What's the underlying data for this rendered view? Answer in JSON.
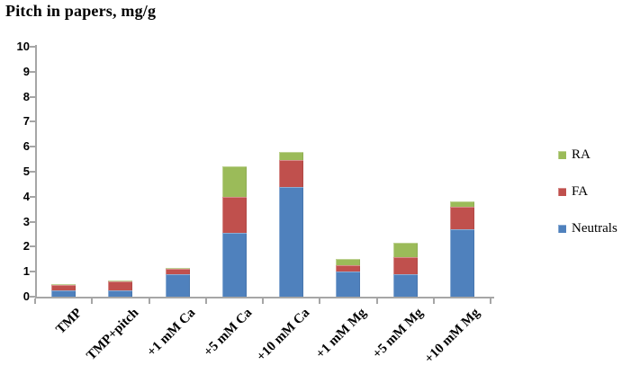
{
  "title": "Pitch in papers, mg/g",
  "chart_data": {
    "type": "bar",
    "stacked": true,
    "title": "Pitch in papers, mg/g",
    "xlabel": "",
    "ylabel": "",
    "categories": [
      "TMP",
      "TMP+pitch",
      "+1 mM Ca",
      "+5 mM Ca",
      "+10 mM Ca",
      "+1 mM Mg",
      "+5 mM Mg",
      "+10 mM Mg"
    ],
    "series": [
      {
        "name": "Neutrals",
        "color": "#4f81bd",
        "values": [
          0.25,
          0.25,
          0.9,
          2.55,
          4.4,
          1.0,
          0.9,
          2.7
        ]
      },
      {
        "name": "FA",
        "color": "#c0504d",
        "values": [
          0.2,
          0.35,
          0.2,
          1.45,
          1.05,
          0.25,
          0.7,
          0.9
        ]
      },
      {
        "name": "RA",
        "color": "#9bbb59",
        "values": [
          0.05,
          0.05,
          0.05,
          1.2,
          0.35,
          0.25,
          0.55,
          0.2
        ]
      }
    ],
    "totals": [
      0.5,
      0.65,
      1.15,
      5.2,
      5.8,
      1.5,
      2.15,
      3.8
    ],
    "ylim": [
      0,
      10
    ],
    "ytick_step": 1,
    "ytick_labels": [
      "0",
      "1",
      "2",
      "3",
      "4",
      "5",
      "6",
      "7",
      "8",
      "9",
      "10"
    ],
    "grid": false,
    "axis_color": "#a6a6a6",
    "legend": {
      "position": "right",
      "entries_top_to_bottom": [
        "RA",
        "FA",
        "Neutrals"
      ]
    }
  }
}
